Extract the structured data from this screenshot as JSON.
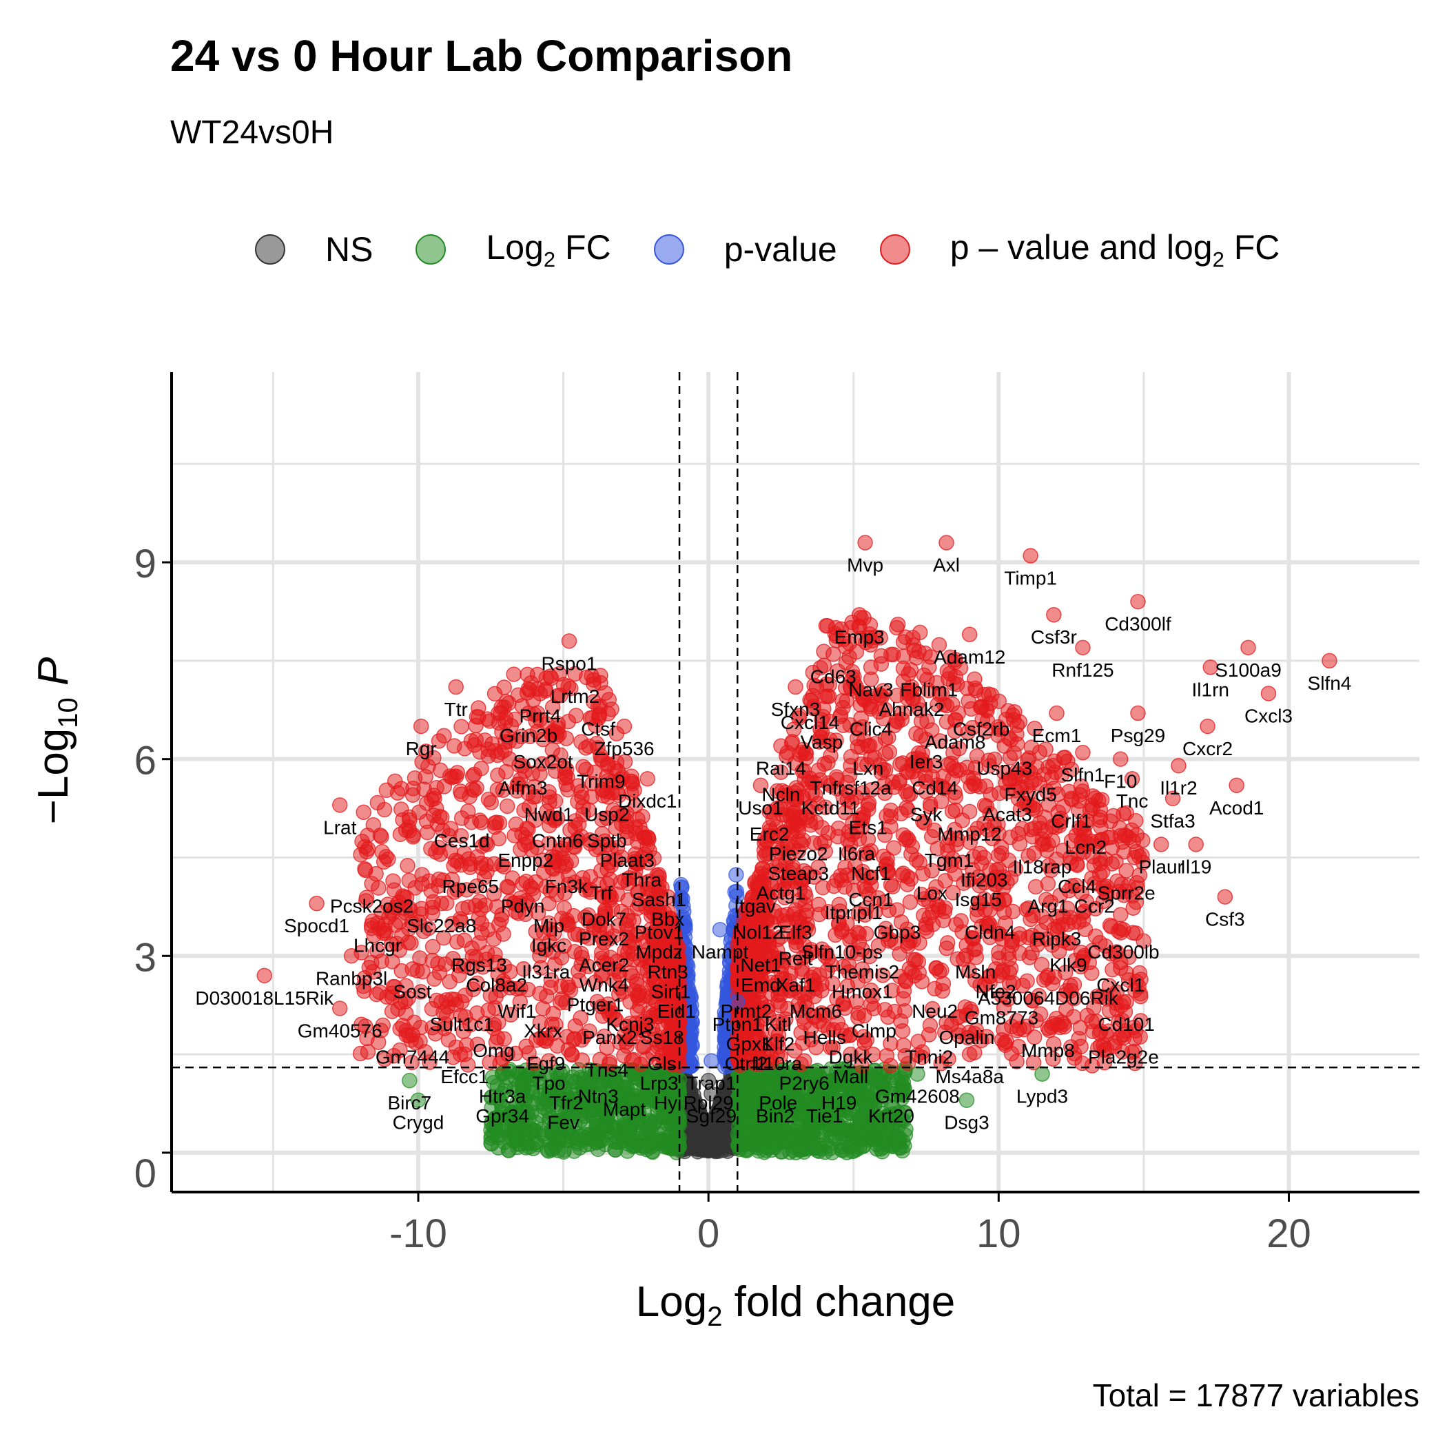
{
  "title": "24 vs 0 Hour Lab Comparison",
  "subtitle": "WT24vs0H",
  "caption": "Total = 17877 variables",
  "legend": [
    {
      "key": "ns",
      "label": "NS",
      "color": "#333333"
    },
    {
      "key": "fc",
      "label": "Log2 FC",
      "label_main": "Log",
      "label_sub": "2",
      "label_tail": " FC",
      "color": "#228B22"
    },
    {
      "key": "p",
      "label": "p-value",
      "color": "#3355DD"
    },
    {
      "key": "both",
      "label": "p – value and log2 FC",
      "label_main": "p – value and log",
      "label_sub": "2",
      "label_tail": " FC",
      "color": "#E31A1C"
    }
  ],
  "chart_data": {
    "type": "scatter",
    "title": "24 vs 0 Hour Lab Comparison",
    "subtitle": "WT24vs0H",
    "xlabel": "Log2 fold change",
    "ylabel": "-Log10 P",
    "xlim": [
      -18.5,
      24.5
    ],
    "ylim": [
      -0.6,
      11.9
    ],
    "x_ticks": [
      -10,
      0,
      10,
      20
    ],
    "x_tick_labels": [
      "-10",
      "0",
      "10",
      "20"
    ],
    "y_ticks": [
      0,
      3,
      6,
      9
    ],
    "y_tick_labels": [
      "0",
      "3",
      "6",
      "9"
    ],
    "grid": true,
    "legend_position": "top",
    "fc_cutoff": 1,
    "p_cutoff_neglog10": 1.3,
    "total_variables": 17877,
    "labeled_points": [
      {
        "gene": "Mvp",
        "x": 5.4,
        "y": 9.3
      },
      {
        "gene": "Axl",
        "x": 8.2,
        "y": 9.3
      },
      {
        "gene": "Timp1",
        "x": 11.1,
        "y": 9.1
      },
      {
        "gene": "Cd300lf",
        "x": 14.8,
        "y": 8.4
      },
      {
        "gene": "Csf3r",
        "x": 11.9,
        "y": 8.2
      },
      {
        "gene": "Emp3",
        "x": 5.2,
        "y": 8.2
      },
      {
        "gene": "Adam12",
        "x": 9.0,
        "y": 7.9
      },
      {
        "gene": "Rnf125",
        "x": 12.9,
        "y": 7.7
      },
      {
        "gene": "Cd63",
        "x": 4.3,
        "y": 7.6
      },
      {
        "gene": "Nav3",
        "x": 5.6,
        "y": 7.4
      },
      {
        "gene": "Fblim1",
        "x": 7.6,
        "y": 7.4
      },
      {
        "gene": "S100a9",
        "x": 18.6,
        "y": 7.7
      },
      {
        "gene": "Slfn4",
        "x": 21.4,
        "y": 7.5
      },
      {
        "gene": "Il1rn",
        "x": 17.3,
        "y": 7.4
      },
      {
        "gene": "Ahnak2",
        "x": 7.0,
        "y": 7.1
      },
      {
        "gene": "Sfxn3",
        "x": 3.0,
        "y": 7.1
      },
      {
        "gene": "Cxcl14",
        "x": 3.5,
        "y": 6.9
      },
      {
        "gene": "Csf2rb",
        "x": 9.4,
        "y": 6.8
      },
      {
        "gene": "Clic4",
        "x": 5.6,
        "y": 6.8
      },
      {
        "gene": "Cxcl3",
        "x": 19.3,
        "y": 7.0
      },
      {
        "gene": "Adam8",
        "x": 8.5,
        "y": 6.6
      },
      {
        "gene": "Vasp",
        "x": 3.9,
        "y": 6.6
      },
      {
        "gene": "Ecm1",
        "x": 12.0,
        "y": 6.7
      },
      {
        "gene": "Psg29",
        "x": 14.8,
        "y": 6.7
      },
      {
        "gene": "Cxcr2",
        "x": 17.2,
        "y": 6.5
      },
      {
        "gene": "Ier3",
        "x": 7.5,
        "y": 6.3
      },
      {
        "gene": "Usp43",
        "x": 10.2,
        "y": 6.2
      },
      {
        "gene": "Slfn1",
        "x": 12.9,
        "y": 6.1
      },
      {
        "gene": "F10",
        "x": 14.2,
        "y": 6.0
      },
      {
        "gene": "Rai14",
        "x": 2.5,
        "y": 6.2
      },
      {
        "gene": "Lxn",
        "x": 5.5,
        "y": 6.2
      },
      {
        "gene": "Tnfrsf12a",
        "x": 4.9,
        "y": 5.9
      },
      {
        "gene": "Cd14",
        "x": 7.8,
        "y": 5.9
      },
      {
        "gene": "Fxyd5",
        "x": 11.1,
        "y": 5.8
      },
      {
        "gene": "Il1r2",
        "x": 16.2,
        "y": 5.9
      },
      {
        "gene": "Tnc",
        "x": 14.6,
        "y": 5.7
      },
      {
        "gene": "Acod1",
        "x": 18.2,
        "y": 5.6
      },
      {
        "gene": "Ncln",
        "x": 2.5,
        "y": 5.8
      },
      {
        "gene": "Kctd11",
        "x": 4.2,
        "y": 5.6
      },
      {
        "gene": "Uso1",
        "x": 1.8,
        "y": 5.6
      },
      {
        "gene": "Syk",
        "x": 7.5,
        "y": 5.5
      },
      {
        "gene": "Acat3",
        "x": 10.3,
        "y": 5.5
      },
      {
        "gene": "Crlf1",
        "x": 12.5,
        "y": 5.4
      },
      {
        "gene": "Stfa3",
        "x": 16.0,
        "y": 5.4
      },
      {
        "gene": "Ets1",
        "x": 5.5,
        "y": 5.3
      },
      {
        "gene": "Erc2",
        "x": 2.1,
        "y": 5.2
      },
      {
        "gene": "Mmp12",
        "x": 9.0,
        "y": 5.2
      },
      {
        "gene": "Piezo2",
        "x": 3.1,
        "y": 4.9
      },
      {
        "gene": "Il6ra",
        "x": 5.1,
        "y": 4.9
      },
      {
        "gene": "Lcn2",
        "x": 13.0,
        "y": 5.0
      },
      {
        "gene": "Tgm1",
        "x": 8.3,
        "y": 4.8
      },
      {
        "gene": "Ncf1",
        "x": 5.6,
        "y": 4.6
      },
      {
        "gene": "Il18rap",
        "x": 11.5,
        "y": 4.7
      },
      {
        "gene": "Plaur",
        "x": 15.6,
        "y": 4.7
      },
      {
        "gene": "Il19",
        "x": 16.8,
        "y": 4.7
      },
      {
        "gene": "Steap3",
        "x": 3.1,
        "y": 4.6
      },
      {
        "gene": "Ifi203",
        "x": 9.5,
        "y": 4.5
      },
      {
        "gene": "Actg1",
        "x": 2.5,
        "y": 4.3
      },
      {
        "gene": "Lox",
        "x": 7.7,
        "y": 4.3
      },
      {
        "gene": "Ccl4",
        "x": 12.7,
        "y": 4.4
      },
      {
        "gene": "Sprr2e",
        "x": 14.4,
        "y": 4.3
      },
      {
        "gene": "Isg15",
        "x": 9.3,
        "y": 4.2
      },
      {
        "gene": "Ccn1",
        "x": 5.6,
        "y": 4.2
      },
      {
        "gene": "Arg1",
        "x": 11.7,
        "y": 4.1
      },
      {
        "gene": "Ccr2",
        "x": 13.3,
        "y": 4.1
      },
      {
        "gene": "Itgav",
        "x": 1.6,
        "y": 4.1
      },
      {
        "gene": "Itpripl1",
        "x": 5.0,
        "y": 4.0
      },
      {
        "gene": "Csf3",
        "x": 17.8,
        "y": 3.9
      },
      {
        "gene": "Nol12",
        "x": 1.7,
        "y": 3.7
      },
      {
        "gene": "Elf3",
        "x": 3.0,
        "y": 3.7
      },
      {
        "gene": "Gbp3",
        "x": 6.5,
        "y": 3.7
      },
      {
        "gene": "Cldn4",
        "x": 9.7,
        "y": 3.7
      },
      {
        "gene": "Ripk3",
        "x": 12.0,
        "y": 3.6
      },
      {
        "gene": "Nampt",
        "x": 0.4,
        "y": 3.4
      },
      {
        "gene": "Slfn10-ps",
        "x": 4.6,
        "y": 3.4
      },
      {
        "gene": "Cd300lb",
        "x": 14.3,
        "y": 3.4
      },
      {
        "gene": "Relt",
        "x": 3.0,
        "y": 3.3
      },
      {
        "gene": "Klk9",
        "x": 12.4,
        "y": 3.2
      },
      {
        "gene": "Net1",
        "x": 1.8,
        "y": 3.2
      },
      {
        "gene": "Themis2",
        "x": 5.3,
        "y": 3.1
      },
      {
        "gene": "Msln",
        "x": 9.2,
        "y": 3.1
      },
      {
        "gene": "Cxcl1",
        "x": 14.2,
        "y": 2.9
      },
      {
        "gene": "Emd",
        "x": 1.8,
        "y": 2.9
      },
      {
        "gene": "Xaf1",
        "x": 3.0,
        "y": 2.9
      },
      {
        "gene": "Hmox1",
        "x": 5.3,
        "y": 2.8
      },
      {
        "gene": "Nfe2",
        "x": 9.9,
        "y": 2.8
      },
      {
        "gene": "A530064D06Rik",
        "x": 11.7,
        "y": 2.7
      },
      {
        "gene": "Prmt2",
        "x": 1.3,
        "y": 2.5
      },
      {
        "gene": "Mcm6",
        "x": 3.7,
        "y": 2.5
      },
      {
        "gene": "Neu2",
        "x": 7.8,
        "y": 2.5
      },
      {
        "gene": "Gm8773",
        "x": 10.1,
        "y": 2.4
      },
      {
        "gene": "Cd101",
        "x": 14.4,
        "y": 2.3
      },
      {
        "gene": "Ptpn1",
        "x": 1.0,
        "y": 2.3
      },
      {
        "gene": "Kitl",
        "x": 2.4,
        "y": 2.3
      },
      {
        "gene": "Clmp",
        "x": 5.7,
        "y": 2.2
      },
      {
        "gene": "Hells",
        "x": 4.0,
        "y": 2.1
      },
      {
        "gene": "Opalin",
        "x": 8.9,
        "y": 2.1
      },
      {
        "gene": "Mmp8",
        "x": 11.7,
        "y": 1.9
      },
      {
        "gene": "Gpx1",
        "x": 1.4,
        "y": 2.0
      },
      {
        "gene": "Klf2",
        "x": 2.4,
        "y": 2.0
      },
      {
        "gene": "Pla2g2e",
        "x": 14.3,
        "y": 1.8
      },
      {
        "gene": "Dgkk",
        "x": 4.9,
        "y": 1.8
      },
      {
        "gene": "Tnni2",
        "x": 7.6,
        "y": 1.8
      },
      {
        "gene": "Otrf2",
        "x": 1.3,
        "y": 1.7
      },
      {
        "gene": "Il10ra",
        "x": 2.4,
        "y": 1.7
      },
      {
        "gene": "Mall",
        "x": 4.9,
        "y": 1.5
      },
      {
        "gene": "Ms4a8a",
        "x": 9.0,
        "y": 1.5
      },
      {
        "gene": "P2ry6",
        "x": 3.3,
        "y": 1.4
      },
      {
        "gene": "Trap1",
        "x": 0.1,
        "y": 1.4
      },
      {
        "gene": "Gm42608",
        "x": 7.2,
        "y": 1.2
      },
      {
        "gene": "Lypd3",
        "x": 11.5,
        "y": 1.2
      },
      {
        "gene": "H19",
        "x": 4.5,
        "y": 1.1
      },
      {
        "gene": "Rpl29",
        "x": 0.0,
        "y": 1.1
      },
      {
        "gene": "Pole",
        "x": 2.4,
        "y": 1.1
      },
      {
        "gene": "Sgf29",
        "x": 0.1,
        "y": 0.9
      },
      {
        "gene": "Bin2",
        "x": 2.3,
        "y": 0.9
      },
      {
        "gene": "Tie1",
        "x": 4.0,
        "y": 0.9
      },
      {
        "gene": "Krt20",
        "x": 6.3,
        "y": 0.9
      },
      {
        "gene": "Dsg3",
        "x": 8.9,
        "y": 0.8
      },
      {
        "gene": "Rspo1",
        "x": -4.8,
        "y": 7.8
      },
      {
        "gene": "Lrtm2",
        "x": -4.6,
        "y": 7.3
      },
      {
        "gene": "Ttr",
        "x": -8.7,
        "y": 7.1
      },
      {
        "gene": "Prrt4",
        "x": -5.8,
        "y": 7.0
      },
      {
        "gene": "Ctsf",
        "x": -3.8,
        "y": 6.8
      },
      {
        "gene": "Grin2b",
        "x": -6.2,
        "y": 6.7
      },
      {
        "gene": "Zfp536",
        "x": -2.9,
        "y": 6.5
      },
      {
        "gene": "Rgr",
        "x": -9.9,
        "y": 6.5
      },
      {
        "gene": "Sox2ot",
        "x": -5.7,
        "y": 6.3
      },
      {
        "gene": "Trim9",
        "x": -3.7,
        "y": 6.0
      },
      {
        "gene": "Aifm3",
        "x": -6.4,
        "y": 5.9
      },
      {
        "gene": "Dixdc1",
        "x": -2.1,
        "y": 5.7
      },
      {
        "gene": "Nwd1",
        "x": -5.5,
        "y": 5.5
      },
      {
        "gene": "Usp2",
        "x": -3.5,
        "y": 5.5
      },
      {
        "gene": "Lrat",
        "x": -12.7,
        "y": 5.3
      },
      {
        "gene": "Ces1d",
        "x": -8.5,
        "y": 5.1
      },
      {
        "gene": "Cntn6",
        "x": -5.2,
        "y": 5.1
      },
      {
        "gene": "Sptb",
        "x": -3.5,
        "y": 5.1
      },
      {
        "gene": "Plaat3",
        "x": -2.8,
        "y": 4.8
      },
      {
        "gene": "Enpp2",
        "x": -6.3,
        "y": 4.8
      },
      {
        "gene": "Thra",
        "x": -2.3,
        "y": 4.5
      },
      {
        "gene": "Fn3k",
        "x": -4.9,
        "y": 4.4
      },
      {
        "gene": "Rpe65",
        "x": -8.2,
        "y": 4.4
      },
      {
        "gene": "Trf",
        "x": -3.7,
        "y": 4.3
      },
      {
        "gene": "Sash1",
        "x": -1.7,
        "y": 4.2
      },
      {
        "gene": "Pcsk2os2",
        "x": -11.6,
        "y": 4.1
      },
      {
        "gene": "Pdyn",
        "x": -6.4,
        "y": 4.1
      },
      {
        "gene": "Dok7",
        "x": -3.6,
        "y": 3.9
      },
      {
        "gene": "Bbx",
        "x": -1.4,
        "y": 3.9
      },
      {
        "gene": "Spocd1",
        "x": -13.5,
        "y": 3.8
      },
      {
        "gene": "Slc22a8",
        "x": -9.2,
        "y": 3.8
      },
      {
        "gene": "Mip",
        "x": -5.5,
        "y": 3.8
      },
      {
        "gene": "Ptov1",
        "x": -1.7,
        "y": 3.7
      },
      {
        "gene": "Prex2",
        "x": -3.6,
        "y": 3.6
      },
      {
        "gene": "Lhcgr",
        "x": -11.4,
        "y": 3.5
      },
      {
        "gene": "Igkc",
        "x": -5.5,
        "y": 3.5
      },
      {
        "gene": "Mpdz",
        "x": -1.7,
        "y": 3.4
      },
      {
        "gene": "Rgs13",
        "x": -7.9,
        "y": 3.2
      },
      {
        "gene": "Il31ra",
        "x": -5.6,
        "y": 3.1
      },
      {
        "gene": "Acer2",
        "x": -3.6,
        "y": 3.2
      },
      {
        "gene": "Rtn3",
        "x": -1.4,
        "y": 3.1
      },
      {
        "gene": "Ranbp3l",
        "x": -12.3,
        "y": 3.0
      },
      {
        "gene": "Wnk4",
        "x": -3.6,
        "y": 2.9
      },
      {
        "gene": "Col8a2",
        "x": -7.3,
        "y": 2.9
      },
      {
        "gene": "Sirt1",
        "x": -1.3,
        "y": 2.8
      },
      {
        "gene": "D030018L15Rik",
        "x": -15.3,
        "y": 2.7
      },
      {
        "gene": "Sost",
        "x": -10.2,
        "y": 2.8
      },
      {
        "gene": "Ptger1",
        "x": -3.9,
        "y": 2.6
      },
      {
        "gene": "Eid1",
        "x": -1.1,
        "y": 2.5
      },
      {
        "gene": "Wif1",
        "x": -6.6,
        "y": 2.5
      },
      {
        "gene": "Kcnj3",
        "x": -2.7,
        "y": 2.3
      },
      {
        "gene": "Sult1c1",
        "x": -8.5,
        "y": 2.3
      },
      {
        "gene": "Xkrx",
        "x": -5.7,
        "y": 2.2
      },
      {
        "gene": "Gm40576",
        "x": -12.7,
        "y": 2.2
      },
      {
        "gene": "Panx2",
        "x": -3.4,
        "y": 2.1
      },
      {
        "gene": "Ss18",
        "x": -1.6,
        "y": 2.1
      },
      {
        "gene": "Omg",
        "x": -7.4,
        "y": 1.9
      },
      {
        "gene": "Gm7444",
        "x": -10.2,
        "y": 1.8
      },
      {
        "gene": "Fgf9",
        "x": -5.6,
        "y": 1.7
      },
      {
        "gene": "Gls",
        "x": -1.6,
        "y": 1.7
      },
      {
        "gene": "Efcc1",
        "x": -8.4,
        "y": 1.5
      },
      {
        "gene": "Tns4",
        "x": -3.5,
        "y": 1.6
      },
      {
        "gene": "Tpo",
        "x": -5.5,
        "y": 1.4
      },
      {
        "gene": "Lrp3",
        "x": -1.7,
        "y": 1.4
      },
      {
        "gene": "Htr3a",
        "x": -7.1,
        "y": 1.2
      },
      {
        "gene": "Ntn3",
        "x": -3.8,
        "y": 1.2
      },
      {
        "gene": "Birc7",
        "x": -10.3,
        "y": 1.1
      },
      {
        "gene": "Tfr2",
        "x": -4.9,
        "y": 1.1
      },
      {
        "gene": "Hyi",
        "x": -1.4,
        "y": 1.1
      },
      {
        "gene": "Mapt",
        "x": -2.9,
        "y": 1.0
      },
      {
        "gene": "Gpr34",
        "x": -7.1,
        "y": 0.9
      },
      {
        "gene": "Fev",
        "x": -5.0,
        "y": 0.8
      },
      {
        "gene": "Crygd",
        "x": -10.0,
        "y": 0.8
      }
    ]
  }
}
